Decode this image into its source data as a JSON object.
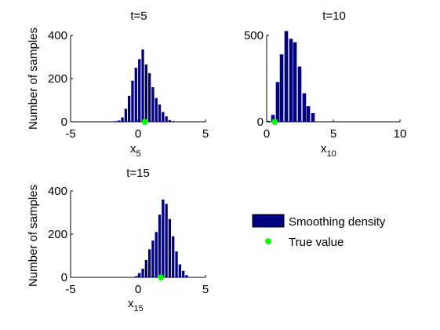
{
  "chart_data": [
    {
      "type": "bar",
      "title": "t=5",
      "xlabel": "x",
      "xlabel_subscript": "5",
      "ylabel": "Number of samples",
      "xlim": [
        -5,
        5
      ],
      "ylim": [
        0,
        400
      ],
      "xticks": [
        "-5",
        "0",
        "5"
      ],
      "yticks": [
        "0",
        "200",
        "400"
      ],
      "bin_width": 0.25,
      "bins": [
        {
          "x": -1.88,
          "y": 2
        },
        {
          "x": -1.63,
          "y": 3
        },
        {
          "x": -1.38,
          "y": 6
        },
        {
          "x": -1.13,
          "y": 20
        },
        {
          "x": -0.88,
          "y": 60
        },
        {
          "x": -0.63,
          "y": 120
        },
        {
          "x": -0.38,
          "y": 190
        },
        {
          "x": -0.13,
          "y": 250
        },
        {
          "x": 0.13,
          "y": 290
        },
        {
          "x": 0.38,
          "y": 335
        },
        {
          "x": 0.63,
          "y": 265
        },
        {
          "x": 0.88,
          "y": 225
        },
        {
          "x": 1.13,
          "y": 160
        },
        {
          "x": 1.38,
          "y": 110
        },
        {
          "x": 1.63,
          "y": 80
        },
        {
          "x": 1.88,
          "y": 45
        },
        {
          "x": 2.13,
          "y": 25
        },
        {
          "x": 2.38,
          "y": 8
        },
        {
          "x": 2.63,
          "y": 3
        }
      ],
      "true_value": 0.5
    },
    {
      "type": "bar",
      "title": "t=10",
      "xlabel": "x",
      "xlabel_subscript": "10",
      "ylabel": "",
      "xlim": [
        0,
        10
      ],
      "ylim": [
        0,
        500
      ],
      "xticks": [
        "0",
        "5",
        "10"
      ],
      "yticks": [
        "0",
        "500"
      ],
      "bin_width": 0.33,
      "bins": [
        {
          "x": 0.15,
          "y": 5
        },
        {
          "x": 0.5,
          "y": 40
        },
        {
          "x": 0.85,
          "y": 230
        },
        {
          "x": 1.15,
          "y": 390
        },
        {
          "x": 1.5,
          "y": 525
        },
        {
          "x": 1.85,
          "y": 480
        },
        {
          "x": 2.15,
          "y": 460
        },
        {
          "x": 2.5,
          "y": 320
        },
        {
          "x": 2.85,
          "y": 165
        },
        {
          "x": 3.15,
          "y": 90
        },
        {
          "x": 3.5,
          "y": 50
        }
      ],
      "true_value": 0.6
    },
    {
      "type": "bar",
      "title": "t=15",
      "xlabel": "x",
      "xlabel_subscript": "15",
      "ylabel": "Number of samples",
      "xlim": [
        -5,
        5
      ],
      "ylim": [
        0,
        400
      ],
      "xticks": [
        "-5",
        "0",
        "5"
      ],
      "yticks": [
        "0",
        "200",
        "400"
      ],
      "bin_width": 0.25,
      "bins": [
        {
          "x": -0.13,
          "y": 5
        },
        {
          "x": 0.13,
          "y": 20
        },
        {
          "x": 0.38,
          "y": 40
        },
        {
          "x": 0.63,
          "y": 80
        },
        {
          "x": 0.88,
          "y": 130
        },
        {
          "x": 1.13,
          "y": 170
        },
        {
          "x": 1.38,
          "y": 210
        },
        {
          "x": 1.63,
          "y": 290
        },
        {
          "x": 1.88,
          "y": 360
        },
        {
          "x": 2.13,
          "y": 340
        },
        {
          "x": 2.38,
          "y": 270
        },
        {
          "x": 2.63,
          "y": 190
        },
        {
          "x": 2.88,
          "y": 120
        },
        {
          "x": 3.13,
          "y": 60
        },
        {
          "x": 3.38,
          "y": 30
        },
        {
          "x": 3.63,
          "y": 10
        }
      ],
      "true_value": 1.7
    }
  ],
  "legend": {
    "placement": "right of bottom-left subplot",
    "items": [
      {
        "label": "Smoothing density",
        "kind": "bar"
      },
      {
        "label": "True value",
        "kind": "marker"
      }
    ]
  },
  "colors": {
    "bar": "#000080",
    "true_value": "#00ff00",
    "axis": "#000000"
  }
}
